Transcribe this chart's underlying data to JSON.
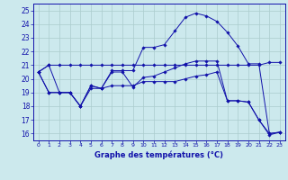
{
  "xlabel": "Graphe des températures (°C)",
  "background_color": "#cce9ed",
  "grid_color": "#aacccc",
  "line_color": "#1111aa",
  "ylim": [
    15.5,
    25.5
  ],
  "xlim": [
    -0.5,
    23.5
  ],
  "yticks": [
    16,
    17,
    18,
    19,
    20,
    21,
    22,
    23,
    24,
    25
  ],
  "xticks": [
    0,
    1,
    2,
    3,
    4,
    5,
    6,
    7,
    8,
    9,
    10,
    11,
    12,
    13,
    14,
    15,
    16,
    17,
    18,
    19,
    20,
    21,
    22,
    23
  ],
  "series": [
    {
      "x": [
        0,
        1,
        2,
        3,
        4,
        5,
        6,
        7,
        8,
        9,
        10,
        11,
        12,
        13,
        14,
        15,
        16,
        17,
        18,
        19,
        20,
        21,
        22,
        23
      ],
      "y": [
        20.5,
        21.0,
        21.0,
        21.0,
        21.0,
        21.0,
        21.0,
        21.0,
        21.0,
        21.0,
        21.0,
        21.0,
        21.0,
        21.0,
        21.0,
        21.0,
        21.0,
        21.0,
        21.0,
        21.0,
        21.0,
        21.0,
        21.2,
        21.2
      ]
    },
    {
      "x": [
        0,
        1,
        2,
        3,
        4,
        5,
        6,
        7,
        8,
        9,
        10,
        11,
        12,
        13,
        14,
        15,
        16,
        17,
        18,
        19,
        20,
        21,
        22,
        23
      ],
      "y": [
        20.5,
        19.0,
        19.0,
        19.0,
        18.0,
        19.3,
        19.3,
        20.6,
        20.6,
        20.6,
        22.3,
        22.3,
        22.5,
        23.5,
        24.5,
        24.8,
        24.6,
        24.2,
        23.4,
        22.4,
        21.1,
        21.1,
        16.0,
        16.1
      ]
    },
    {
      "x": [
        0,
        1,
        2,
        3,
        4,
        5,
        6,
        7,
        8,
        9,
        10,
        11,
        12,
        13,
        14,
        15,
        16,
        17,
        18,
        19,
        20,
        21,
        22,
        23
      ],
      "y": [
        20.5,
        21.0,
        19.0,
        19.0,
        18.0,
        19.5,
        19.3,
        20.5,
        20.5,
        19.4,
        20.1,
        20.2,
        20.5,
        20.8,
        21.1,
        21.3,
        21.3,
        21.3,
        18.4,
        18.4,
        18.3,
        17.0,
        15.9,
        16.1
      ]
    },
    {
      "x": [
        0,
        1,
        2,
        3,
        4,
        5,
        6,
        7,
        8,
        9,
        10,
        11,
        12,
        13,
        14,
        15,
        16,
        17,
        18,
        19,
        20,
        21,
        22,
        23
      ],
      "y": [
        20.5,
        19.0,
        19.0,
        19.0,
        18.0,
        19.5,
        19.3,
        19.5,
        19.5,
        19.5,
        19.8,
        19.8,
        19.8,
        19.8,
        20.0,
        20.2,
        20.3,
        20.5,
        18.4,
        18.4,
        18.3,
        17.0,
        16.0,
        16.1
      ]
    }
  ]
}
